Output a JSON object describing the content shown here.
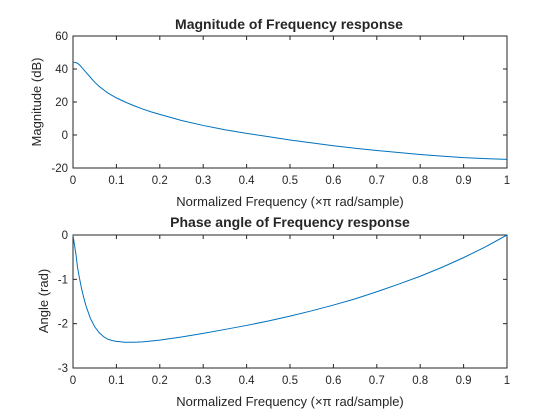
{
  "chart_data": [
    {
      "type": "line",
      "title": "Magnitude of Frequency response",
      "xlabel": "Normalized Frequency  (×π rad/sample)",
      "ylabel": "Magnitude (dB)",
      "xlim": [
        0,
        1
      ],
      "ylim": [
        -20,
        60
      ],
      "xticks": [
        0,
        0.1,
        0.2,
        0.3,
        0.4,
        0.5,
        0.6,
        0.7,
        0.8,
        0.9,
        1
      ],
      "xtick_labels": [
        "0",
        "0.1",
        "0.2",
        "0.3",
        "0.4",
        "0.5",
        "0.6",
        "0.7",
        "0.8",
        "0.9",
        "1"
      ],
      "yticks": [
        -20,
        0,
        20,
        40,
        60
      ],
      "ytick_labels": [
        "-20",
        "0",
        "20",
        "40",
        "60"
      ],
      "grid": false,
      "line_color": "#0072bd",
      "series": [
        {
          "x": [
            0,
            0.005,
            0.01,
            0.015,
            0.02,
            0.03,
            0.04,
            0.05,
            0.06,
            0.07,
            0.08,
            0.09,
            0.1,
            0.12,
            0.14,
            0.16,
            0.18,
            0.2,
            0.25,
            0.3,
            0.35,
            0.4,
            0.45,
            0.5,
            0.55,
            0.6,
            0.65,
            0.7,
            0.75,
            0.8,
            0.85,
            0.9,
            0.95,
            1
          ],
          "y": [
            44,
            44,
            43.5,
            42.5,
            41,
            38,
            35,
            32,
            29.5,
            27.5,
            25.5,
            24,
            22.5,
            20,
            17.8,
            15.8,
            14,
            12.5,
            8.8,
            5.8,
            3.2,
            1,
            -1,
            -3,
            -4.8,
            -6.5,
            -8,
            -9.4,
            -10.6,
            -11.8,
            -12.8,
            -13.7,
            -14.3,
            -14.8
          ]
        }
      ]
    },
    {
      "type": "line",
      "title": "Phase angle of Frequency response",
      "xlabel": "Normalized Frequency  (×π rad/sample)",
      "ylabel": "Angle (rad)",
      "xlim": [
        0,
        1
      ],
      "ylim": [
        -3,
        0
      ],
      "xticks": [
        0,
        0.1,
        0.2,
        0.3,
        0.4,
        0.5,
        0.6,
        0.7,
        0.8,
        0.9,
        1
      ],
      "xtick_labels": [
        "0",
        "0.1",
        "0.2",
        "0.3",
        "0.4",
        "0.5",
        "0.6",
        "0.7",
        "0.8",
        "0.9",
        "1"
      ],
      "yticks": [
        -3,
        -2,
        -1,
        0
      ],
      "ytick_labels": [
        "-3",
        "-2",
        "-1",
        "0"
      ],
      "grid": false,
      "line_color": "#0072bd",
      "series": [
        {
          "x": [
            0,
            0.003,
            0.007,
            0.01,
            0.015,
            0.02,
            0.025,
            0.03,
            0.04,
            0.05,
            0.06,
            0.07,
            0.08,
            0.09,
            0.1,
            0.12,
            0.14,
            0.16,
            0.18,
            0.2,
            0.25,
            0.3,
            0.35,
            0.4,
            0.45,
            0.5,
            0.55,
            0.6,
            0.65,
            0.7,
            0.75,
            0.8,
            0.85,
            0.9,
            0.95,
            1
          ],
          "y": [
            0,
            -0.2,
            -0.45,
            -0.7,
            -0.98,
            -1.22,
            -1.42,
            -1.6,
            -1.88,
            -2.07,
            -2.2,
            -2.29,
            -2.35,
            -2.38,
            -2.4,
            -2.42,
            -2.42,
            -2.41,
            -2.39,
            -2.37,
            -2.3,
            -2.22,
            -2.13,
            -2.04,
            -1.94,
            -1.83,
            -1.71,
            -1.58,
            -1.44,
            -1.28,
            -1.11,
            -0.93,
            -0.73,
            -0.51,
            -0.27,
            0
          ]
        }
      ]
    }
  ]
}
